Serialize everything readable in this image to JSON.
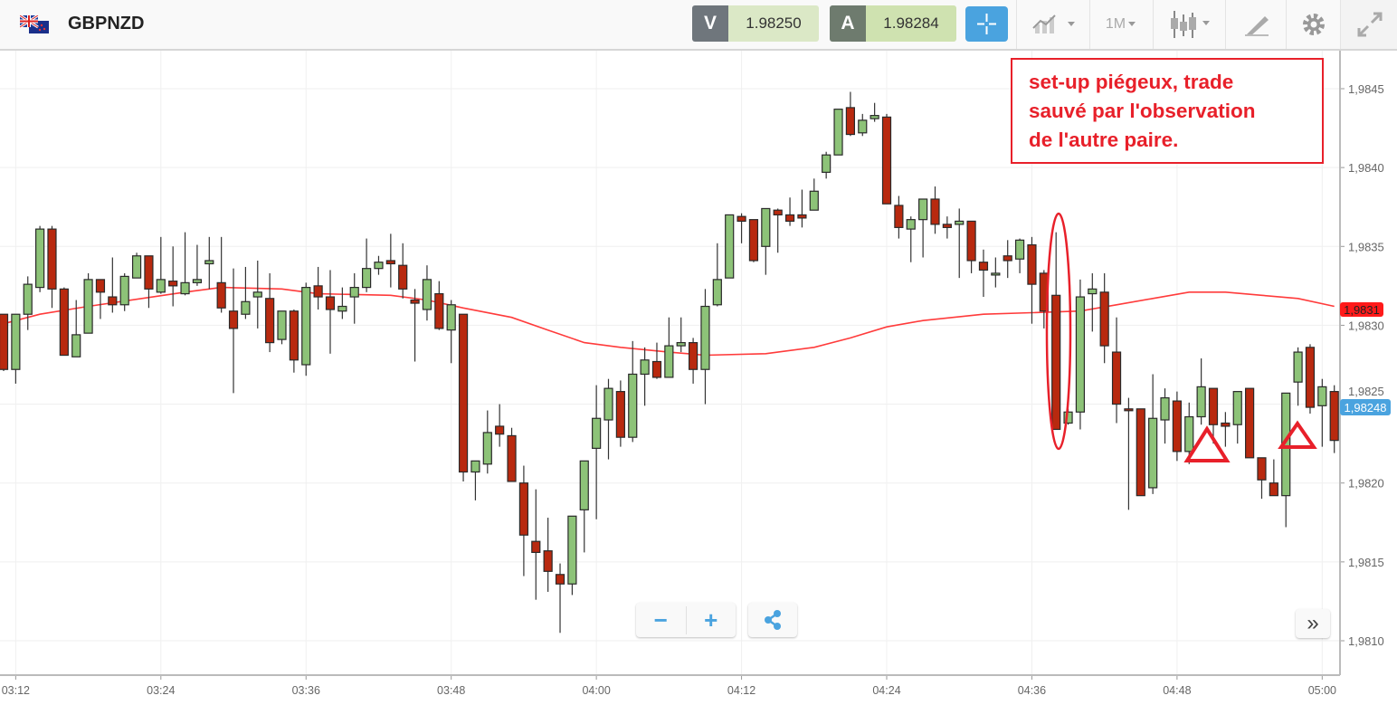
{
  "header": {
    "symbol": "GBPNZD",
    "flag_icon": "gb-nz-flag-icon",
    "sell": {
      "label": "V",
      "value": "1.98250",
      "label_color": "#6f767c",
      "value_color": "#dbe8c6"
    },
    "buy": {
      "label": "A",
      "value": "1.98284",
      "label_color": "#6e7b6e",
      "value_color": "#cfe2b0"
    },
    "crosshair_icon": "crosshair-icon",
    "timeframe": "1M",
    "tools": [
      "chart-type-icon",
      "timeframe-dropdown",
      "candlestick-icon",
      "drawing-pen-icon",
      "gear-icon",
      "fullscreen-icon"
    ]
  },
  "annotation": {
    "text": "set-up piégeux, trade\nsauvé par l'observation\nde l'autre paire.",
    "color": "#e8202a"
  },
  "controls": {
    "zoom_out": "−",
    "zoom_in": "+",
    "share_icon": "share-icon",
    "scroll_right": "»"
  },
  "chart_data": {
    "type": "candlestick",
    "title": "",
    "colors": {
      "up": "#8dc378",
      "down": "#b8290f",
      "ma": "#ff3b3b",
      "last_price": "#4aa3df"
    },
    "y_ticks": [
      "1,9845",
      "1,9840",
      "1,9835",
      "1,9830",
      "1,9825",
      "1,9820",
      "1,9815",
      "1,9810"
    ],
    "y_tick_values": [
      1.9845,
      1.984,
      1.9835,
      1.983,
      1.9825,
      1.982,
      1.9815,
      1.981
    ],
    "x_ticks": [
      "03:12",
      "03:24",
      "03:36",
      "03:48",
      "04:00",
      "04:12",
      "04:24",
      "04:36",
      "04:48",
      "05:00"
    ],
    "ma_label": "1,9831",
    "ma_value": 1.9831,
    "last_price_label": "1,98248",
    "last_price": 1.98248,
    "candles_fields": [
      "time",
      "open",
      "high",
      "low",
      "close"
    ],
    "candles": [
      [
        "03:11",
        1.98307,
        1.98307,
        1.98271,
        1.98272
      ],
      [
        "03:12",
        1.98272,
        1.98307,
        1.98263,
        1.98307
      ],
      [
        "03:13",
        1.98307,
        1.98331,
        1.98297,
        1.98326
      ],
      [
        "03:14",
        1.98324,
        1.98363,
        1.98321,
        1.98361
      ],
      [
        "03:15",
        1.98361,
        1.98363,
        1.98311,
        1.98323
      ],
      [
        "03:16",
        1.98323,
        1.98324,
        1.98281,
        1.98281
      ],
      [
        "03:17",
        1.9828,
        1.98316,
        1.9828,
        1.98294
      ],
      [
        "03:18",
        1.98295,
        1.98333,
        1.98296,
        1.98329
      ],
      [
        "03:19",
        1.98329,
        1.98329,
        1.98304,
        1.98321
      ],
      [
        "03:20",
        1.98318,
        1.98343,
        1.98308,
        1.98313
      ],
      [
        "03:21",
        1.98313,
        1.98333,
        1.98309,
        1.98331
      ],
      [
        "03:22",
        1.9833,
        1.98346,
        1.9833,
        1.98344
      ],
      [
        "03:23",
        1.98344,
        1.98344,
        1.98311,
        1.98323
      ],
      [
        "03:24",
        1.98321,
        1.98356,
        1.9832,
        1.98329
      ],
      [
        "03:25",
        1.98328,
        1.9835,
        1.98312,
        1.98325
      ],
      [
        "03:26",
        1.9832,
        1.98359,
        1.98319,
        1.98327
      ],
      [
        "03:27",
        1.98327,
        1.98351,
        1.98325,
        1.98329
      ],
      [
        "03:28",
        1.98339,
        1.98356,
        1.98323,
        1.98341
      ],
      [
        "03:29",
        1.98327,
        1.98356,
        1.98308,
        1.98311
      ],
      [
        "03:30",
        1.98309,
        1.98336,
        1.98257,
        1.98298
      ],
      [
        "03:31",
        1.98307,
        1.98337,
        1.98304,
        1.98315
      ],
      [
        "03:32",
        1.98318,
        1.98341,
        1.98298,
        1.98321
      ],
      [
        "03:33",
        1.98317,
        1.98333,
        1.98283,
        1.98289
      ],
      [
        "03:34",
        1.98291,
        1.98309,
        1.98288,
        1.98309
      ],
      [
        "03:35",
        1.98309,
        1.9831,
        1.9827,
        1.98278
      ],
      [
        "03:36",
        1.98275,
        1.98327,
        1.98268,
        1.98324
      ],
      [
        "03:37",
        1.98325,
        1.98337,
        1.9831,
        1.98318
      ],
      [
        "03:38",
        1.98318,
        1.98335,
        1.98282,
        1.9831
      ],
      [
        "03:39",
        1.98309,
        1.98324,
        1.98304,
        1.98312
      ],
      [
        "03:40",
        1.98318,
        1.98333,
        1.98301,
        1.98324
      ],
      [
        "03:41",
        1.98324,
        1.98355,
        1.98321,
        1.98336
      ],
      [
        "03:42",
        1.98336,
        1.98344,
        1.98332,
        1.9834
      ],
      [
        "03:43",
        1.98341,
        1.98358,
        1.98324,
        1.98339
      ],
      [
        "03:44",
        1.98338,
        1.98352,
        1.98317,
        1.98323
      ],
      [
        "03:45",
        1.98316,
        1.98323,
        1.98277,
        1.98314
      ],
      [
        "03:46",
        1.9831,
        1.98338,
        1.98303,
        1.98329
      ],
      [
        "03:47",
        1.9832,
        1.98328,
        1.98297,
        1.98298
      ],
      [
        "03:48",
        1.98297,
        1.98316,
        1.98276,
        1.98313
      ],
      [
        "03:49",
        1.98307,
        1.98307,
        1.98201,
        1.98207
      ],
      [
        "03:50",
        1.98207,
        1.98214,
        1.98189,
        1.98214
      ],
      [
        "03:51",
        1.98212,
        1.98246,
        1.98206,
        1.98232
      ],
      [
        "03:52",
        1.98236,
        1.9825,
        1.98223,
        1.98231
      ],
      [
        "03:53",
        1.9823,
        1.98235,
        1.98201,
        1.98201
      ],
      [
        "03:54",
        1.982,
        1.98211,
        1.98141,
        1.98167
      ],
      [
        "03:55",
        1.98163,
        1.98196,
        1.98126,
        1.98156
      ],
      [
        "03:56",
        1.98157,
        1.98178,
        1.98131,
        1.98144
      ],
      [
        "03:57",
        1.98142,
        1.98149,
        1.98105,
        1.98136
      ],
      [
        "03:58",
        1.98136,
        1.98179,
        1.98129,
        1.98179
      ],
      [
        "03:59",
        1.98183,
        1.98214,
        1.98156,
        1.98214
      ],
      [
        "04:00",
        1.98222,
        1.98262,
        1.98177,
        1.98241
      ],
      [
        "04:01",
        1.9824,
        1.98266,
        1.98215,
        1.9826
      ],
      [
        "04:02",
        1.98258,
        1.98265,
        1.98223,
        1.98229
      ],
      [
        "04:03",
        1.98229,
        1.9829,
        1.98226,
        1.98269
      ],
      [
        "04:04",
        1.98269,
        1.98286,
        1.98249,
        1.98278
      ],
      [
        "04:05",
        1.98277,
        1.98289,
        1.98266,
        1.98267
      ],
      [
        "04:06",
        1.98267,
        1.98305,
        1.98267,
        1.98287
      ],
      [
        "04:07",
        1.98287,
        1.98305,
        1.98283,
        1.98289
      ],
      [
        "04:08",
        1.98289,
        1.98292,
        1.98263,
        1.98272
      ],
      [
        "04:09",
        1.98272,
        1.98323,
        1.9825,
        1.98312
      ],
      [
        "04:10",
        1.98313,
        1.98352,
        1.98312,
        1.98329
      ],
      [
        "04:11",
        1.9833,
        1.9837,
        1.9833,
        1.9837
      ],
      [
        "04:12",
        1.98369,
        1.98371,
        1.98352,
        1.98366
      ],
      [
        "04:13",
        1.98367,
        1.98367,
        1.9834,
        1.98341
      ],
      [
        "04:14",
        1.9835,
        1.98374,
        1.98332,
        1.98374
      ],
      [
        "04:15",
        1.98373,
        1.98374,
        1.98346,
        1.9837
      ],
      [
        "04:16",
        1.9837,
        1.98381,
        1.98363,
        1.98366
      ],
      [
        "04:17",
        1.9837,
        1.98386,
        1.98362,
        1.98368
      ],
      [
        "04:18",
        1.98373,
        1.98393,
        1.98373,
        1.98385
      ],
      [
        "04:19",
        1.98397,
        1.9841,
        1.98393,
        1.98408
      ],
      [
        "04:20",
        1.98408,
        1.98437,
        1.98408,
        1.98437
      ],
      [
        "04:21",
        1.98438,
        1.98448,
        1.9842,
        1.98421
      ],
      [
        "04:22",
        1.98422,
        1.98434,
        1.9842,
        1.9843
      ],
      [
        "04:23",
        1.98431,
        1.98441,
        1.98429,
        1.98433
      ],
      [
        "04:24",
        1.98432,
        1.98434,
        1.98377,
        1.98377
      ],
      [
        "04:25",
        1.98376,
        1.98382,
        1.98355,
        1.98362
      ],
      [
        "04:26",
        1.98361,
        1.98369,
        1.9834,
        1.98367
      ],
      [
        "04:27",
        1.98367,
        1.9838,
        1.98343,
        1.9838
      ],
      [
        "04:28",
        1.9838,
        1.98388,
        1.98358,
        1.98364
      ],
      [
        "04:29",
        1.98364,
        1.98369,
        1.98355,
        1.98362
      ],
      [
        "04:30",
        1.98364,
        1.98374,
        1.9833,
        1.98366
      ],
      [
        "04:31",
        1.98366,
        1.98366,
        1.98333,
        1.98341
      ],
      [
        "04:32",
        1.9834,
        1.98348,
        1.98318,
        1.98335
      ],
      [
        "04:33",
        1.98332,
        1.98343,
        1.98324,
        1.98333
      ],
      [
        "04:34",
        1.98344,
        1.98354,
        1.9833,
        1.98341
      ],
      [
        "04:35",
        1.98342,
        1.98355,
        1.98333,
        1.98354
      ],
      [
        "04:36",
        1.98351,
        1.98356,
        1.98301,
        1.98326
      ],
      [
        "04:37",
        1.98333,
        1.98335,
        1.98298,
        1.98309
      ],
      [
        "04:38",
        1.98319,
        1.98359,
        1.98234,
        1.98234
      ],
      [
        "04:39",
        1.98238,
        1.98247,
        1.98237,
        1.98245
      ],
      [
        "04:40",
        1.98245,
        1.98329,
        1.98234,
        1.98318
      ],
      [
        "04:41",
        1.9832,
        1.98333,
        1.98296,
        1.98323
      ],
      [
        "04:42",
        1.98321,
        1.98333,
        1.98276,
        1.98287
      ],
      [
        "04:43",
        1.98283,
        1.98305,
        1.98238,
        1.9825
      ],
      [
        "04:44",
        1.98247,
        1.98254,
        1.98183,
        1.98246
      ],
      [
        "04:45",
        1.98247,
        1.98247,
        1.98192,
        1.98192
      ],
      [
        "04:46",
        1.98197,
        1.98269,
        1.98193,
        1.98241
      ],
      [
        "04:47",
        1.9824,
        1.9826,
        1.98225,
        1.98254
      ],
      [
        "04:48",
        1.98252,
        1.98258,
        1.98214,
        1.9822
      ],
      [
        "04:49",
        1.9822,
        1.98251,
        1.98212,
        1.98242
      ],
      [
        "04:50",
        1.98242,
        1.98279,
        1.98237,
        1.98261
      ],
      [
        "04:51",
        1.9826,
        1.9826,
        1.98225,
        1.98237
      ],
      [
        "04:52",
        1.98238,
        1.98245,
        1.98223,
        1.98236
      ],
      [
        "04:53",
        1.98237,
        1.98258,
        1.98225,
        1.98258
      ],
      [
        "04:54",
        1.9826,
        1.9826,
        1.98216,
        1.98216
      ],
      [
        "04:55",
        1.98216,
        1.98216,
        1.9819,
        1.98202
      ],
      [
        "04:56",
        1.982,
        1.98215,
        1.98192,
        1.98192
      ],
      [
        "04:57",
        1.98192,
        1.98257,
        1.98172,
        1.98257
      ],
      [
        "04:58",
        1.98264,
        1.98286,
        1.98249,
        1.98283
      ],
      [
        "04:59",
        1.98286,
        1.98288,
        1.98244,
        1.98248
      ],
      [
        "05:00",
        1.98249,
        1.98266,
        1.98223,
        1.98261
      ],
      [
        "05:01",
        1.98258,
        1.98262,
        1.98219,
        1.98227
      ]
    ],
    "moving_average": [
      [
        "03:11",
        1.98301
      ],
      [
        "03:14",
        1.98307
      ],
      [
        "03:18",
        1.98312
      ],
      [
        "03:26",
        1.98321
      ],
      [
        "03:29",
        1.98324
      ],
      [
        "03:34",
        1.98323
      ],
      [
        "03:37",
        1.9832
      ],
      [
        "03:43",
        1.98319
      ],
      [
        "03:46",
        1.98316
      ],
      [
        "03:49",
        1.98311
      ],
      [
        "03:53",
        1.98305
      ],
      [
        "03:56",
        1.98297
      ],
      [
        "03:59",
        1.98289
      ],
      [
        "04:02",
        1.98286
      ],
      [
        "04:06",
        1.98283
      ],
      [
        "04:09",
        1.98281
      ],
      [
        "04:14",
        1.98282
      ],
      [
        "04:18",
        1.98286
      ],
      [
        "04:21",
        1.98292
      ],
      [
        "04:24",
        1.98299
      ],
      [
        "04:27",
        1.98303
      ],
      [
        "04:32",
        1.98307
      ],
      [
        "04:36",
        1.98308
      ],
      [
        "04:40",
        1.98309
      ],
      [
        "04:43",
        1.98313
      ],
      [
        "04:46",
        1.98317
      ],
      [
        "04:49",
        1.98321
      ],
      [
        "04:52",
        1.98321
      ],
      [
        "04:55",
        1.98319
      ],
      [
        "04:58",
        1.98317
      ],
      [
        "05:01",
        1.98312
      ]
    ]
  }
}
